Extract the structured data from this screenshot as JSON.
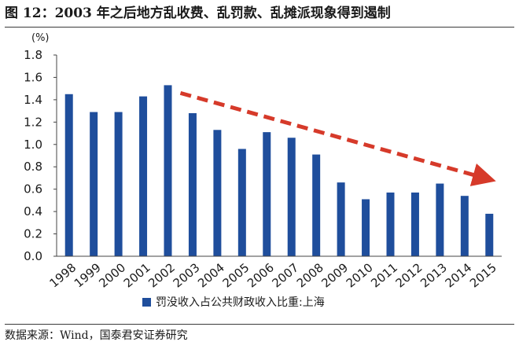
{
  "figure": {
    "title": "图 12：2003 年之后地方乱收费、乱罚款、乱摊派现象得到遏制",
    "source": "数据来源：Wind，国泰君安证券研究"
  },
  "chart_data": {
    "type": "bar",
    "unit_label": "(%)",
    "categories": [
      "1998",
      "1999",
      "2000",
      "2001",
      "2002",
      "2003",
      "2004",
      "2005",
      "2006",
      "2007",
      "2008",
      "2009",
      "2010",
      "2011",
      "2012",
      "2013",
      "2014",
      "2015"
    ],
    "series": [
      {
        "name": "罚没收入占公共财政收入比重:上海",
        "values": [
          1.45,
          1.29,
          1.29,
          1.43,
          1.53,
          1.28,
          1.13,
          0.96,
          1.11,
          1.06,
          0.91,
          0.66,
          0.51,
          0.57,
          0.57,
          0.65,
          0.54,
          0.38
        ]
      }
    ],
    "ylim": [
      0,
      1.8
    ],
    "yticks": [
      "0.0",
      "0.2",
      "0.4",
      "0.6",
      "0.8",
      "1.0",
      "1.2",
      "1.4",
      "1.6",
      "1.8"
    ],
    "colors": {
      "bar": "#1f4e9c",
      "trend_arrow": "#d63a2a"
    },
    "annotation": "trend-arrow from 2002 to 2015 (dashed red, downward)",
    "legend_position": "bottom-left"
  }
}
